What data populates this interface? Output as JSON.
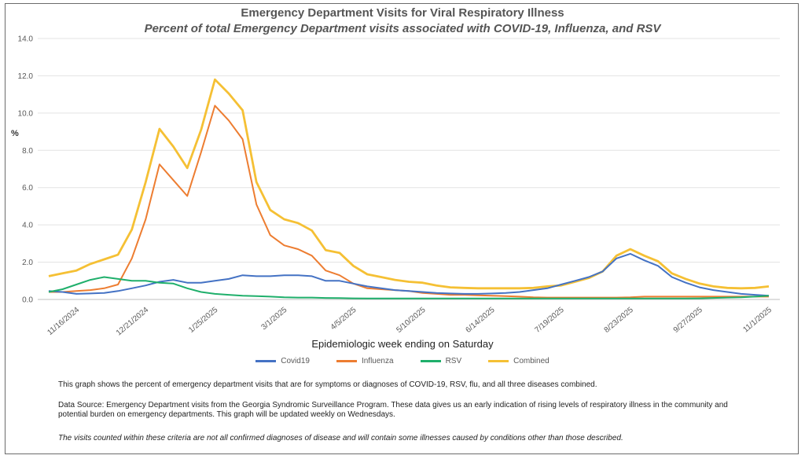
{
  "chart_data": {
    "type": "line",
    "title": "Emergency Department Visits for Viral Respiratory Illness",
    "subtitle": "Percent of total Emergency Department visits associated with COVID-19, Influenza, and RSV",
    "xlabel": "Epidemiologic week ending on Saturday",
    "ylabel": "%",
    "ylim": [
      0,
      14
    ],
    "yticks": [
      "0.0",
      "2.0",
      "4.0",
      "6.0",
      "8.0",
      "10.0",
      "12.0",
      "14.0"
    ],
    "grid": "horizontal",
    "legend_position": "bottom",
    "x_start": "11/2/2024",
    "x_interval_days": 7,
    "tick_labels": [
      {
        "index": 2,
        "label": "11/16/2024"
      },
      {
        "index": 7,
        "label": "12/21/2024"
      },
      {
        "index": 12,
        "label": "1/25/2025"
      },
      {
        "index": 17,
        "label": "3/1/2025"
      },
      {
        "index": 22,
        "label": "4/5/2025"
      },
      {
        "index": 27,
        "label": "5/10/2025"
      },
      {
        "index": 32,
        "label": "6/14/2025"
      },
      {
        "index": 37,
        "label": "7/19/2025"
      },
      {
        "index": 42,
        "label": "8/23/2025"
      },
      {
        "index": 47,
        "label": "9/27/2025"
      },
      {
        "index": 52,
        "label": "11/1/2025"
      }
    ],
    "series": [
      {
        "name": "Covid19",
        "color": "#4472C4",
        "values": [
          0.45,
          0.4,
          0.3,
          0.32,
          0.35,
          0.45,
          0.6,
          0.75,
          0.95,
          1.05,
          0.9,
          0.9,
          1.0,
          1.1,
          1.3,
          1.25,
          1.25,
          1.3,
          1.3,
          1.25,
          1.0,
          1.0,
          0.85,
          0.7,
          0.6,
          0.5,
          0.45,
          0.4,
          0.35,
          0.32,
          0.3,
          0.3,
          0.32,
          0.35,
          0.4,
          0.5,
          0.6,
          0.8,
          1.0,
          1.2,
          1.5,
          2.2,
          2.45,
          2.1,
          1.8,
          1.2,
          0.9,
          0.65,
          0.5,
          0.4,
          0.3,
          0.25,
          0.2
        ]
      },
      {
        "name": "Influenza",
        "color": "#ED7D31",
        "values": [
          0.4,
          0.4,
          0.45,
          0.5,
          0.6,
          0.8,
          2.2,
          4.3,
          7.25,
          6.4,
          5.55,
          7.9,
          10.4,
          9.6,
          8.6,
          5.1,
          3.45,
          2.9,
          2.7,
          2.35,
          1.55,
          1.3,
          0.85,
          0.6,
          0.55,
          0.5,
          0.45,
          0.35,
          0.3,
          0.25,
          0.25,
          0.22,
          0.2,
          0.18,
          0.15,
          0.12,
          0.1,
          0.1,
          0.1,
          0.1,
          0.1,
          0.1,
          0.12,
          0.15,
          0.15,
          0.15,
          0.15,
          0.15,
          0.15,
          0.15,
          0.15,
          0.15,
          0.15
        ]
      },
      {
        "name": "RSV",
        "color": "#1FAF6B",
        "values": [
          0.4,
          0.55,
          0.8,
          1.05,
          1.2,
          1.1,
          1.0,
          1.0,
          0.9,
          0.85,
          0.6,
          0.4,
          0.3,
          0.25,
          0.2,
          0.18,
          0.15,
          0.12,
          0.1,
          0.1,
          0.08,
          0.07,
          0.06,
          0.05,
          0.05,
          0.05,
          0.05,
          0.05,
          0.05,
          0.05,
          0.05,
          0.05,
          0.05,
          0.05,
          0.05,
          0.05,
          0.05,
          0.05,
          0.05,
          0.05,
          0.05,
          0.05,
          0.05,
          0.05,
          0.05,
          0.05,
          0.05,
          0.06,
          0.08,
          0.1,
          0.12,
          0.15,
          0.2
        ]
      },
      {
        "name": "Combined",
        "color": "#F5C034",
        "values": [
          1.25,
          1.4,
          1.55,
          1.9,
          2.15,
          2.4,
          3.75,
          6.3,
          9.15,
          8.2,
          7.05,
          9.1,
          11.8,
          11.05,
          10.15,
          6.3,
          4.8,
          4.3,
          4.1,
          3.7,
          2.65,
          2.5,
          1.8,
          1.35,
          1.2,
          1.05,
          0.95,
          0.9,
          0.75,
          0.65,
          0.62,
          0.6,
          0.6,
          0.6,
          0.6,
          0.62,
          0.7,
          0.75,
          0.95,
          1.15,
          1.5,
          2.35,
          2.7,
          2.35,
          2.05,
          1.4,
          1.1,
          0.85,
          0.7,
          0.62,
          0.6,
          0.62,
          0.7
        ]
      }
    ]
  },
  "notes": {
    "description": "This graph shows the percent of emergency department visits that are for symptoms or diagnoses of COVID-19, RSV, flu, and all three diseases combined.",
    "source": "Data Source: Emergency Department visits from the Georgia Syndromic Surveillance Program. These data gives us an early indication of rising levels of respiratory illness in the community and potential burden on emergency departments. This graph will be updated weekly on Wednesdays.",
    "disclaimer": "The visits counted within these criteria are not all confirmed diagnoses of disease and will contain some illnesses caused by conditions other than those described."
  }
}
